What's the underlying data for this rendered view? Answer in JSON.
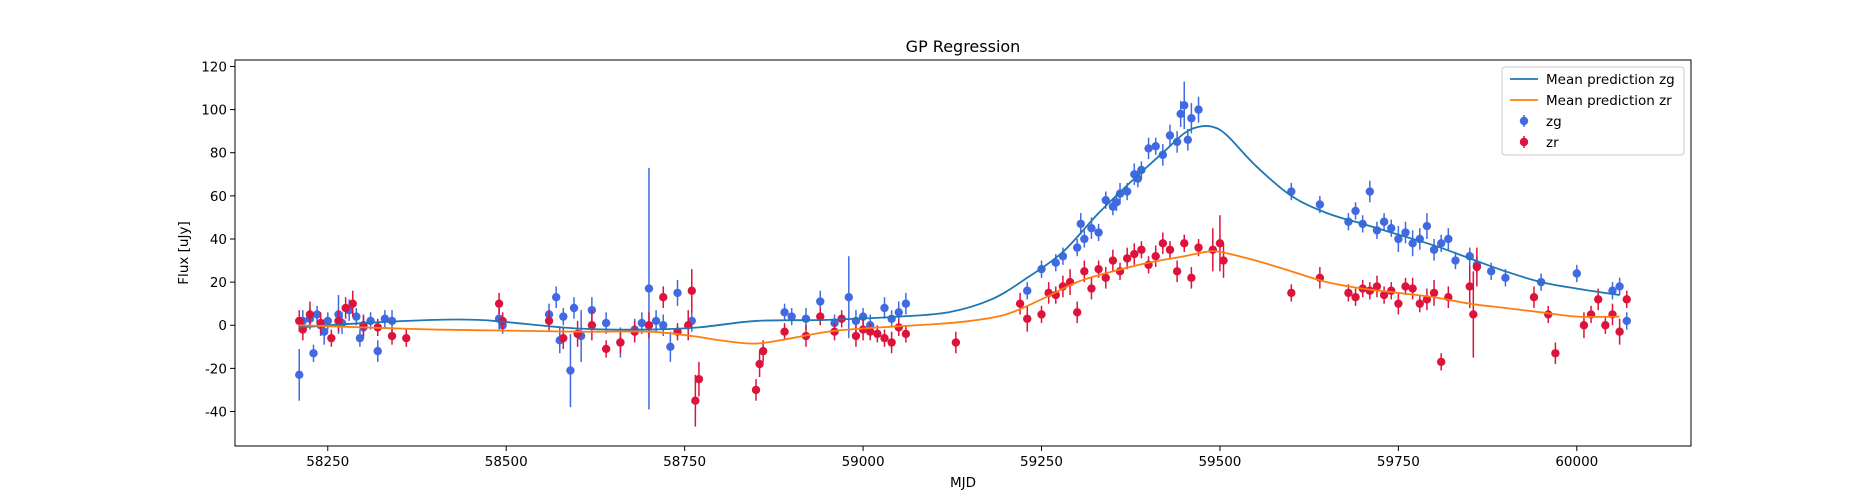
{
  "chart_data": {
    "type": "scatter",
    "title": "GP Regression",
    "xlabel": "MJD",
    "ylabel": "Flux [uJy]",
    "xlim": [
      58120,
      60160
    ],
    "ylim": [
      -56,
      123
    ],
    "xticks": [
      58250,
      58500,
      58750,
      59000,
      59250,
      59500,
      59750,
      60000
    ],
    "yticks": [
      -40,
      -20,
      0,
      20,
      40,
      60,
      80,
      100,
      120
    ],
    "grid": false,
    "legend_position": "top-right",
    "series": [
      {
        "name": "Mean prediction zg",
        "kind": "line",
        "color": "#1f77b4",
        "x": [
          58210,
          58300,
          58400,
          58460,
          58500,
          58600,
          58700,
          58770,
          58850,
          58950,
          59050,
          59120,
          59180,
          59230,
          59280,
          59330,
          59380,
          59420,
          59450,
          59470,
          59490,
          59510,
          59550,
          59600,
          59650,
          59700,
          59750,
          59800,
          59850,
          59900,
          59950,
          60000,
          60060
        ],
        "y": [
          -1,
          1,
          2.5,
          2.5,
          1.5,
          -1.5,
          -2,
          -1,
          2,
          2.5,
          4,
          6,
          12,
          22,
          34,
          52,
          68,
          80,
          89,
          92,
          92,
          88,
          74,
          60,
          52,
          47,
          42,
          37,
          31,
          25,
          20,
          17,
          14
        ]
      },
      {
        "name": "Mean prediction zr",
        "kind": "line",
        "color": "#ff7f0e",
        "x": [
          58210,
          58300,
          58400,
          58500,
          58600,
          58700,
          58760,
          58800,
          58850,
          58900,
          58950,
          59000,
          59050,
          59100,
          59150,
          59200,
          59250,
          59300,
          59350,
          59400,
          59450,
          59480,
          59500,
          59550,
          59600,
          59650,
          59700,
          59750,
          59800,
          59850,
          59900,
          59950,
          60000,
          60060
        ],
        "y": [
          0,
          -1,
          -2,
          -2.5,
          -3,
          -3,
          -5,
          -7,
          -8.5,
          -6,
          -3,
          -1.5,
          -0.5,
          0.5,
          2,
          5,
          12,
          20,
          25,
          29,
          32,
          34,
          34,
          30,
          25,
          20,
          17,
          15,
          13,
          10,
          8,
          6,
          4,
          4
        ]
      },
      {
        "name": "zg",
        "kind": "errorbar",
        "color": "#4169e1",
        "x": [
          58210,
          58215,
          58225,
          58230,
          58235,
          58240,
          58245,
          58250,
          58265,
          58270,
          58280,
          58290,
          58295,
          58300,
          58310,
          58320,
          58330,
          58340,
          58490,
          58495,
          58560,
          58570,
          58575,
          58580,
          58590,
          58595,
          58605,
          58620,
          58640,
          58660,
          58680,
          58690,
          58700,
          58710,
          58720,
          58730,
          58740,
          58760,
          58890,
          58900,
          58920,
          58940,
          58960,
          58980,
          58990,
          59000,
          59010,
          59030,
          59040,
          59050,
          59060,
          59230,
          59250,
          59270,
          59280,
          59300,
          59305,
          59310,
          59320,
          59330,
          59340,
          59350,
          59355,
          59360,
          59370,
          59380,
          59385,
          59390,
          59400,
          59410,
          59420,
          59430,
          59440,
          59445,
          59450,
          59455,
          59460,
          59470,
          59600,
          59640,
          59680,
          59690,
          59700,
          59710,
          59720,
          59730,
          59740,
          59750,
          59760,
          59770,
          59780,
          59790,
          59800,
          59810,
          59820,
          59830,
          59850,
          59860,
          59880,
          59900,
          59950,
          60000,
          60050,
          60060,
          60070
        ],
        "y": [
          -23,
          2,
          3,
          -13,
          5,
          0,
          -3,
          2,
          5,
          1,
          7,
          4,
          -6,
          -1,
          2,
          -12,
          3,
          2,
          3,
          0,
          5,
          13,
          -7,
          4,
          -21,
          8,
          -5,
          7,
          1,
          -8,
          -2,
          1,
          17,
          2,
          0,
          -10,
          15,
          2,
          6,
          4,
          3,
          11,
          1,
          13,
          2,
          4,
          0,
          8,
          3,
          6,
          10,
          16,
          26,
          29,
          32,
          36,
          47,
          40,
          45,
          43,
          58,
          55,
          57,
          61,
          62,
          70,
          68,
          72,
          82,
          83,
          79,
          88,
          85,
          98,
          102,
          86,
          96,
          100,
          62,
          56,
          48,
          53,
          47,
          62,
          44,
          48,
          45,
          40,
          43,
          38,
          40,
          46,
          35,
          38,
          40,
          30,
          32,
          28,
          25,
          22,
          20,
          24,
          16,
          18,
          2
        ],
        "err": [
          12,
          5,
          5,
          4,
          4,
          5,
          6,
          4,
          9,
          5,
          5,
          4,
          4,
          5,
          4,
          5,
          4,
          5,
          5,
          4,
          5,
          5,
          6,
          4,
          17,
          5,
          12,
          6,
          5,
          7,
          5,
          5,
          56,
          5,
          5,
          7,
          6,
          5,
          4,
          4,
          5,
          5,
          4,
          19,
          5,
          4,
          5,
          5,
          4,
          5,
          5,
          4,
          4,
          4,
          4,
          4,
          5,
          4,
          5,
          4,
          4,
          4,
          4,
          5,
          4,
          5,
          4,
          4,
          5,
          4,
          5,
          5,
          5,
          6,
          11,
          5,
          7,
          6,
          4,
          4,
          4,
          4,
          4,
          5,
          4,
          4,
          4,
          6,
          5,
          6,
          5,
          6,
          5,
          4,
          5,
          4,
          4,
          4,
          4,
          4,
          4,
          4,
          4,
          4,
          4
        ]
      },
      {
        "name": "zr",
        "kind": "errorbar",
        "color": "#dc143c",
        "x": [
          58210,
          58215,
          58225,
          58240,
          58255,
          58265,
          58275,
          58285,
          58300,
          58320,
          58340,
          58360,
          58490,
          58495,
          58560,
          58580,
          58600,
          58620,
          58640,
          58660,
          58680,
          58700,
          58720,
          58740,
          58755,
          58760,
          58765,
          58770,
          58850,
          58855,
          58860,
          58890,
          58920,
          58940,
          58960,
          58970,
          58990,
          59000,
          59010,
          59020,
          59030,
          59040,
          59050,
          59060,
          59130,
          59220,
          59230,
          59250,
          59260,
          59270,
          59280,
          59290,
          59300,
          59310,
          59320,
          59330,
          59340,
          59350,
          59360,
          59370,
          59380,
          59390,
          59400,
          59410,
          59420,
          59430,
          59440,
          59450,
          59460,
          59470,
          59490,
          59500,
          59505,
          59600,
          59640,
          59680,
          59690,
          59700,
          59710,
          59720,
          59730,
          59740,
          59750,
          59760,
          59770,
          59780,
          59790,
          59800,
          59810,
          59820,
          59850,
          59855,
          59860,
          59940,
          59960,
          59970,
          60010,
          60020,
          60030,
          60040,
          60050,
          60060,
          60070
        ],
        "y": [
          2,
          -2,
          5,
          1,
          -6,
          2,
          8,
          10,
          0,
          -1,
          -5,
          -6,
          10,
          2,
          2,
          -6,
          -4,
          0,
          -11,
          -8,
          -3,
          0,
          13,
          -3,
          0,
          16,
          -35,
          -25,
          -30,
          -18,
          -12,
          -3,
          -5,
          4,
          -3,
          3,
          -5,
          -2,
          -3,
          -4,
          -6,
          -8,
          -1,
          -4,
          -8,
          10,
          3,
          5,
          15,
          14,
          18,
          20,
          6,
          25,
          17,
          26,
          22,
          30,
          25,
          31,
          33,
          35,
          28,
          32,
          38,
          35,
          25,
          38,
          22,
          36,
          35,
          38,
          30,
          15,
          22,
          15,
          13,
          17,
          16,
          18,
          14,
          16,
          10,
          18,
          17,
          10,
          12,
          15,
          -17,
          13,
          18,
          5,
          27,
          13,
          5,
          -13,
          0,
          5,
          12,
          0,
          5,
          -3,
          12
        ],
        "err": [
          5,
          5,
          6,
          5,
          4,
          5,
          5,
          6,
          5,
          4,
          4,
          4,
          5,
          4,
          5,
          5,
          6,
          7,
          4,
          5,
          5,
          6,
          5,
          4,
          7,
          10,
          12,
          8,
          5,
          6,
          5,
          4,
          5,
          4,
          4,
          4,
          5,
          5,
          4,
          4,
          4,
          5,
          4,
          4,
          5,
          5,
          6,
          4,
          5,
          4,
          5,
          6,
          5,
          5,
          5,
          4,
          5,
          5,
          4,
          5,
          5,
          4,
          4,
          5,
          5,
          4,
          5,
          4,
          5,
          4,
          10,
          13,
          8,
          4,
          5,
          4,
          4,
          4,
          4,
          5,
          4,
          4,
          5,
          4,
          5,
          4,
          5,
          6,
          4,
          5,
          10,
          20,
          9,
          5,
          4,
          5,
          6,
          4,
          5,
          4,
          5,
          6,
          4
        ]
      }
    ]
  }
}
